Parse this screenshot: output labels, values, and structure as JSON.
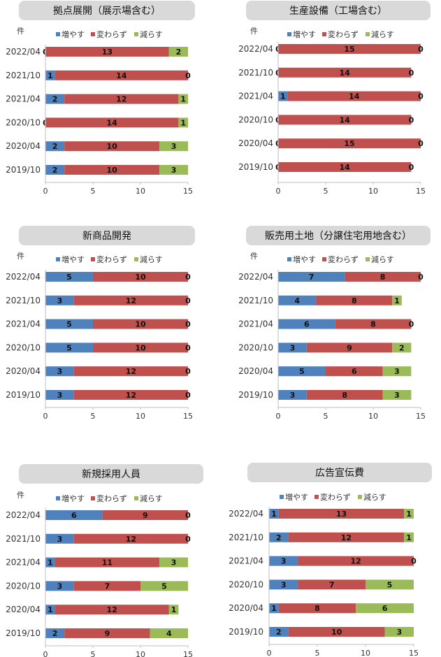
{
  "legend": {
    "inc_label": "増やす",
    "same_label": "変わらず",
    "dec_label": "減らす"
  },
  "colors": {
    "inc": "#4f81bd",
    "same": "#c0504d",
    "dec": "#9bbb59"
  },
  "chart_data": [
    {
      "type": "bar",
      "orientation": "horizontal",
      "stacked": true,
      "title": "拠点展開（展示場含む）",
      "unit_label": "件",
      "categories": [
        "2022/04",
        "2021/10",
        "2021/04",
        "2020/10",
        "2020/04",
        "2019/10"
      ],
      "series": [
        {
          "name": "増やす",
          "values": [
            0,
            1,
            2,
            0,
            2,
            2
          ]
        },
        {
          "name": "変わらず",
          "values": [
            13,
            14,
            12,
            14,
            10,
            10
          ]
        },
        {
          "name": "減らす",
          "values": [
            2,
            0,
            1,
            1,
            3,
            3
          ]
        }
      ],
      "xlim": [
        0,
        15
      ],
      "xticks": [
        "0",
        "5",
        "10",
        "15"
      ],
      "legend_position": "top",
      "grid": false
    },
    {
      "type": "bar",
      "orientation": "horizontal",
      "stacked": true,
      "title": "生産設備（工場含む）",
      "unit_label": "件",
      "categories": [
        "2022/04",
        "2021/10",
        "2021/04",
        "2020/10",
        "2020/04",
        "2019/10"
      ],
      "series": [
        {
          "name": "増やす",
          "values": [
            0,
            0,
            1,
            0,
            0,
            0
          ]
        },
        {
          "name": "変わらず",
          "values": [
            15,
            14,
            14,
            14,
            15,
            14
          ]
        },
        {
          "name": "減らす",
          "values": [
            0,
            0,
            0,
            0,
            0,
            0
          ]
        }
      ],
      "xlim": [
        0,
        15
      ],
      "xticks": [
        "0",
        "5",
        "10",
        "15"
      ],
      "legend_position": "top",
      "grid": false
    },
    {
      "type": "bar",
      "orientation": "horizontal",
      "stacked": true,
      "title": "新商品開発",
      "unit_label": "件",
      "categories": [
        "2022/04",
        "2021/10",
        "2021/04",
        "2020/10",
        "2020/04",
        "2019/10"
      ],
      "series": [
        {
          "name": "増やす",
          "values": [
            5,
            3,
            5,
            5,
            3,
            3
          ]
        },
        {
          "name": "変わらず",
          "values": [
            10,
            12,
            10,
            10,
            12,
            12
          ]
        },
        {
          "name": "減らす",
          "values": [
            0,
            0,
            0,
            0,
            0,
            0
          ]
        }
      ],
      "xlim": [
        0,
        15
      ],
      "xticks": [
        "0",
        "5",
        "10",
        "15"
      ],
      "legend_position": "top",
      "grid": false
    },
    {
      "type": "bar",
      "orientation": "horizontal",
      "stacked": true,
      "title": "販売用土地（分譲住宅用地含む）",
      "unit_label": "件",
      "categories": [
        "2022/04",
        "2021/10",
        "2021/04",
        "2020/10",
        "2020/04",
        "2019/10"
      ],
      "series": [
        {
          "name": "増やす",
          "values": [
            7,
            4,
            6,
            3,
            5,
            3
          ]
        },
        {
          "name": "変わらず",
          "values": [
            8,
            8,
            8,
            9,
            6,
            8
          ]
        },
        {
          "name": "減らす",
          "values": [
            0,
            1,
            0,
            2,
            3,
            3
          ]
        }
      ],
      "xlim": [
        0,
        15
      ],
      "xticks": [
        "0",
        "5",
        "10",
        "15"
      ],
      "legend_position": "top",
      "grid": false
    },
    {
      "type": "bar",
      "orientation": "horizontal",
      "stacked": true,
      "title": "新規採用人員",
      "unit_label": "件",
      "categories": [
        "2022/04",
        "2021/10",
        "2021/04",
        "2020/10",
        "2020/04",
        "2019/10"
      ],
      "series": [
        {
          "name": "増やす",
          "values": [
            6,
            3,
            1,
            3,
            1,
            2
          ]
        },
        {
          "name": "変わらず",
          "values": [
            9,
            12,
            11,
            7,
            12,
            9
          ]
        },
        {
          "name": "減らす",
          "values": [
            0,
            0,
            3,
            5,
            1,
            4
          ]
        }
      ],
      "xlim": [
        0,
        15
      ],
      "xticks": [
        "0",
        "5",
        "10",
        "15"
      ],
      "legend_position": "top",
      "grid": false
    },
    {
      "type": "bar",
      "orientation": "horizontal",
      "stacked": true,
      "title": "広告宣伝費",
      "unit_label": "",
      "categories": [
        "2022/04",
        "2021/10",
        "2021/04",
        "2020/10",
        "2020/04",
        "2019/10"
      ],
      "series": [
        {
          "name": "増やす",
          "values": [
            1,
            2,
            3,
            3,
            1,
            2
          ]
        },
        {
          "name": "変わらず",
          "values": [
            13,
            12,
            12,
            7,
            8,
            10
          ]
        },
        {
          "name": "減らす",
          "values": [
            1,
            1,
            0,
            5,
            6,
            3
          ]
        }
      ],
      "xlim": [
        0,
        15
      ],
      "xticks": [
        "0",
        "5",
        "10",
        "15"
      ],
      "legend_position": "top",
      "grid": false
    }
  ]
}
